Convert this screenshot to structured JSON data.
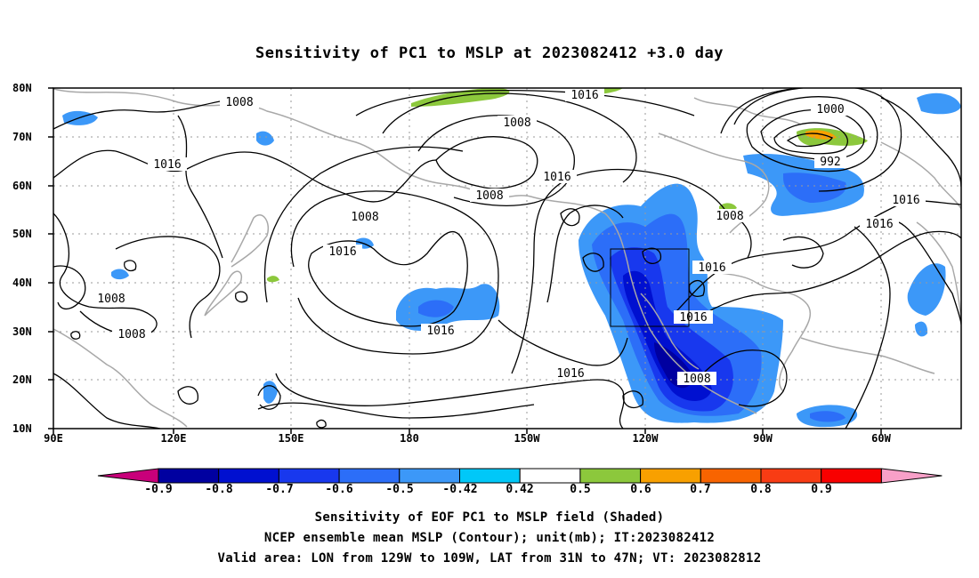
{
  "title": "Sensitivity of PC1 to MSLP at 2023082412 +3.0 day",
  "lat_ticks": [
    "80N",
    "70N",
    "60N",
    "50N",
    "40N",
    "30N",
    "20N",
    "10N"
  ],
  "lon_ticks": [
    "90E",
    "120E",
    "150E",
    "180",
    "150W",
    "120W",
    "90W",
    "60W"
  ],
  "contour_labels": [
    "1008",
    "1016",
    "1008",
    "1016",
    "1008",
    "1016",
    "1008",
    "1016",
    "1016",
    "1000",
    "992",
    "1016",
    "1016",
    "1008",
    "1016",
    "1016",
    "1016",
    "1008",
    "1008",
    "1008",
    "1016"
  ],
  "colorbar": {
    "labels": [
      "-0.9",
      "-0.8",
      "-0.7",
      "-0.6",
      "-0.5",
      "-0.42",
      "0.42",
      "0.5",
      "0.6",
      "0.7",
      "0.8",
      "0.9"
    ],
    "colors": [
      "#c8007a",
      "#0000a0",
      "#0010d0",
      "#1838ee",
      "#2c6ef8",
      "#3c98f8",
      "#00c8f8",
      "#ffffff",
      "#8cc83c",
      "#f8a000",
      "#f86400",
      "#f83c14",
      "#f80000",
      "#f8a0c8"
    ]
  },
  "footer": {
    "line1": "Sensitivity of EOF PC1 to MSLP field (Shaded)",
    "line2": "NCEP ensemble mean MSLP (Contour); unit(mb); IT:2023082412",
    "line3": "Valid area: LON from 129W to 109W, LAT from 31N to 47N; VT: 2023082812"
  }
}
